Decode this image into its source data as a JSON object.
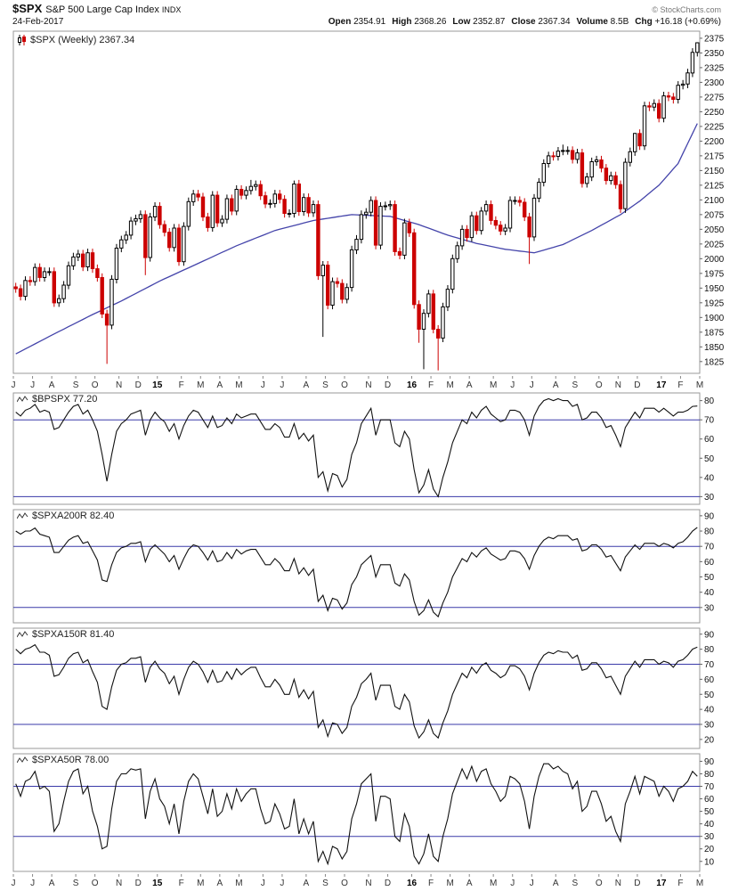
{
  "header": {
    "symbol": "$SPX",
    "name": "S&P 500 Large Cap Index",
    "exchange": "INDX",
    "copyright": "© StockCharts.com",
    "date": "24-Feb-2017",
    "quote": [
      {
        "label": "Open",
        "value": "2354.91"
      },
      {
        "label": "High",
        "value": "2368.26"
      },
      {
        "label": "Low",
        "value": "2352.87"
      },
      {
        "label": "Close",
        "value": "2367.34"
      },
      {
        "label": "Volume",
        "value": "8.5B"
      },
      {
        "label": "Chg",
        "value": "+16.18 (+0.69%)"
      }
    ]
  },
  "xaxis": {
    "labels": [
      "J",
      "J",
      "A",
      "S",
      "O",
      "N",
      "D",
      "15",
      "F",
      "M",
      "A",
      "M",
      "J",
      "J",
      "A",
      "S",
      "O",
      "N",
      "D",
      "16",
      "F",
      "M",
      "A",
      "M",
      "J",
      "J",
      "A",
      "S",
      "O",
      "N",
      "D",
      "17",
      "F",
      "M"
    ],
    "pos": [
      0,
      4,
      8,
      13,
      17,
      22,
      26,
      30,
      35,
      39,
      43,
      47,
      52,
      56,
      61,
      65,
      69,
      74,
      78,
      83,
      87,
      91,
      95,
      100,
      104,
      108,
      113,
      117,
      122,
      126,
      130,
      135,
      139,
      143
    ],
    "year_idx": [
      7,
      19,
      31
    ]
  },
  "chart_data": [
    {
      "id": "spx",
      "type": "candlestick",
      "legend": "$SPX (Weekly) 2367.34",
      "title": "$SPX Weekly with 40-week moving average",
      "ylim": [
        1805,
        2387
      ],
      "yticks": [
        1825,
        1850,
        1875,
        1900,
        1925,
        1950,
        1975,
        2000,
        2025,
        2050,
        2075,
        2100,
        2125,
        2150,
        2175,
        2200,
        2225,
        2250,
        2275,
        2300,
        2325,
        2350,
        2375
      ],
      "first_open": 1952,
      "wick": 7,
      "up_color": "#000000",
      "down_color": "#cc0000",
      "ma_color": "#4444aa",
      "close": [
        1949,
        1936,
        1963,
        1961,
        1985,
        1968,
        1978,
        1978,
        1925,
        1932,
        1955,
        1988,
        2003,
        2008,
        1986,
        2010,
        1983,
        1968,
        1906,
        1887,
        1965,
        2018,
        2032,
        2040,
        2064,
        2068,
        2075,
        2002,
        2071,
        2089,
        2058,
        2045,
        2019,
        2052,
        1995,
        2055,
        2097,
        2110,
        2105,
        2071,
        2053,
        2108,
        2061,
        2067,
        2102,
        2081,
        2118,
        2108,
        2116,
        2123,
        2126,
        2107,
        2093,
        2094,
        2110,
        2101,
        2077,
        2077,
        2127,
        2080,
        2104,
        2078,
        2092,
        1971,
        1989,
        1921,
        1961,
        1958,
        1931,
        1951,
        2015,
        2033,
        2075,
        2079,
        2099,
        2023,
        2089,
        2090,
        2092,
        2012,
        2006,
        2061,
        2044,
        1922,
        1880,
        1907,
        1940,
        1880,
        1865,
        1918,
        1948,
        2000,
        2022,
        2050,
        2036,
        2073,
        2048,
        2081,
        2092,
        2065,
        2057,
        2047,
        2052,
        2099,
        2099,
        2096,
        2071,
        2037,
        2103,
        2130,
        2162,
        2175,
        2174,
        2183,
        2184,
        2184,
        2169,
        2180,
        2128,
        2139,
        2165,
        2168,
        2154,
        2133,
        2141,
        2126,
        2085,
        2164,
        2182,
        2213,
        2192,
        2260,
        2258,
        2264,
        2239,
        2277,
        2275,
        2271,
        2295,
        2297,
        2316,
        2351,
        2367.34
      ],
      "low_overrides": {
        "19": 1821,
        "27": 1972,
        "64": 1867,
        "84": 1857,
        "85": 1812,
        "88": 1810,
        "107": 1991
      },
      "high_overrides": {
        "49": 2134,
        "58": 2133,
        "114": 2194,
        "129": 2214,
        "142": 2368.26
      },
      "ma_anchors": [
        [
          0,
          1838
        ],
        [
          8,
          1872
        ],
        [
          16,
          1905
        ],
        [
          22,
          1928
        ],
        [
          30,
          1962
        ],
        [
          38,
          1992
        ],
        [
          46,
          2022
        ],
        [
          54,
          2048
        ],
        [
          62,
          2065
        ],
        [
          70,
          2075
        ],
        [
          78,
          2072
        ],
        [
          84,
          2058
        ],
        [
          90,
          2040
        ],
        [
          96,
          2026
        ],
        [
          102,
          2016
        ],
        [
          108,
          2010
        ],
        [
          114,
          2024
        ],
        [
          120,
          2048
        ],
        [
          126,
          2075
        ],
        [
          130,
          2098
        ],
        [
          134,
          2125
        ],
        [
          138,
          2162
        ],
        [
          142,
          2230
        ]
      ]
    },
    {
      "id": "bpspx",
      "type": "line",
      "legend": "$BPSPX 77.20",
      "ylim": [
        26,
        84
      ],
      "yticks": [
        30,
        40,
        50,
        60,
        70,
        80
      ],
      "ref_lines": [
        30,
        70
      ],
      "values": [
        74,
        72,
        75,
        76,
        78,
        74,
        75,
        74,
        65,
        66,
        70,
        74,
        77,
        78,
        73,
        75,
        70,
        64,
        52,
        38,
        52,
        64,
        68,
        70,
        73,
        74,
        75,
        62,
        70,
        74,
        71,
        69,
        64,
        68,
        60,
        67,
        72,
        75,
        74,
        70,
        66,
        72,
        66,
        67,
        71,
        68,
        73,
        71,
        72,
        73,
        73,
        69,
        65,
        65,
        68,
        66,
        61,
        61,
        68,
        60,
        63,
        59,
        62,
        40,
        43,
        33,
        42,
        41,
        35,
        39,
        52,
        58,
        68,
        72,
        76,
        62,
        70,
        70,
        70,
        58,
        56,
        64,
        60,
        44,
        32,
        36,
        44,
        34,
        30,
        40,
        48,
        58,
        64,
        70,
        68,
        74,
        71,
        75,
        77,
        73,
        71,
        69,
        70,
        75,
        75,
        74,
        70,
        62,
        72,
        77,
        80,
        81,
        80,
        81,
        80,
        80,
        77,
        78,
        70,
        71,
        74,
        74,
        71,
        66,
        67,
        62,
        56,
        66,
        70,
        74,
        71,
        76,
        76,
        76,
        74,
        76,
        74,
        72,
        74,
        74,
        75,
        77,
        77.2
      ]
    },
    {
      "id": "spxa200r",
      "type": "line",
      "legend": "$SPXA200R 82.40",
      "ylim": [
        20,
        94
      ],
      "yticks": [
        30,
        40,
        50,
        60,
        70,
        80,
        90
      ],
      "ref_lines": [
        30,
        70
      ],
      "values": [
        80,
        78,
        80,
        80,
        82,
        78,
        77,
        76,
        66,
        66,
        70,
        74,
        76,
        77,
        72,
        73,
        67,
        61,
        48,
        47,
        58,
        66,
        69,
        70,
        72,
        72,
        73,
        60,
        68,
        71,
        68,
        65,
        60,
        64,
        55,
        62,
        68,
        71,
        70,
        66,
        61,
        67,
        60,
        61,
        66,
        62,
        68,
        65,
        67,
        68,
        68,
        63,
        58,
        58,
        62,
        59,
        54,
        54,
        62,
        52,
        56,
        51,
        55,
        34,
        38,
        28,
        36,
        35,
        29,
        33,
        45,
        50,
        58,
        61,
        64,
        50,
        58,
        58,
        58,
        46,
        44,
        52,
        48,
        34,
        25,
        28,
        35,
        27,
        24,
        33,
        40,
        50,
        56,
        62,
        60,
        66,
        63,
        67,
        69,
        65,
        63,
        61,
        62,
        67,
        67,
        66,
        62,
        55,
        64,
        70,
        74,
        76,
        75,
        77,
        77,
        77,
        74,
        75,
        67,
        68,
        71,
        71,
        68,
        63,
        64,
        59,
        54,
        63,
        67,
        71,
        68,
        72,
        72,
        72,
        70,
        72,
        71,
        69,
        72,
        73,
        76,
        80,
        82.4
      ]
    },
    {
      "id": "spxa150r",
      "type": "line",
      "legend": "$SPXA150R 81.40",
      "ylim": [
        14,
        94
      ],
      "yticks": [
        20,
        30,
        40,
        50,
        60,
        70,
        80,
        90
      ],
      "ref_lines": [
        30,
        70
      ],
      "values": [
        80,
        77,
        80,
        81,
        83,
        78,
        78,
        76,
        62,
        63,
        68,
        74,
        77,
        78,
        71,
        73,
        65,
        58,
        42,
        40,
        55,
        66,
        70,
        71,
        74,
        74,
        75,
        58,
        68,
        72,
        67,
        64,
        57,
        62,
        50,
        60,
        68,
        72,
        70,
        65,
        58,
        66,
        58,
        59,
        65,
        60,
        67,
        63,
        66,
        68,
        68,
        61,
        55,
        55,
        60,
        56,
        50,
        50,
        60,
        48,
        53,
        47,
        52,
        28,
        33,
        22,
        31,
        30,
        24,
        28,
        42,
        48,
        57,
        60,
        64,
        46,
        56,
        56,
        56,
        42,
        40,
        50,
        45,
        29,
        21,
        25,
        33,
        24,
        21,
        31,
        39,
        50,
        57,
        64,
        61,
        68,
        64,
        69,
        71,
        66,
        64,
        61,
        63,
        69,
        69,
        67,
        62,
        53,
        64,
        71,
        76,
        78,
        77,
        79,
        78,
        78,
        74,
        76,
        66,
        67,
        71,
        71,
        67,
        61,
        62,
        56,
        50,
        62,
        67,
        72,
        68,
        73,
        73,
        73,
        70,
        72,
        71,
        68,
        72,
        73,
        76,
        80,
        81.4
      ]
    },
    {
      "id": "spxa50r",
      "type": "line",
      "legend": "$SPXA50R 78.00",
      "ylim": [
        2,
        96
      ],
      "yticks": [
        10,
        20,
        30,
        40,
        50,
        60,
        70,
        80,
        90
      ],
      "ref_lines": [
        30,
        70
      ],
      "values": [
        72,
        62,
        74,
        76,
        82,
        68,
        70,
        66,
        34,
        40,
        58,
        74,
        82,
        84,
        64,
        70,
        50,
        38,
        20,
        22,
        52,
        74,
        80,
        80,
        84,
        83,
        84,
        44,
        66,
        76,
        60,
        54,
        40,
        56,
        32,
        58,
        74,
        80,
        76,
        62,
        48,
        68,
        46,
        50,
        64,
        52,
        68,
        58,
        64,
        68,
        68,
        52,
        40,
        42,
        56,
        48,
        36,
        38,
        60,
        32,
        44,
        32,
        42,
        10,
        18,
        8,
        22,
        20,
        12,
        18,
        44,
        56,
        72,
        76,
        80,
        42,
        62,
        62,
        60,
        30,
        26,
        48,
        38,
        14,
        8,
        16,
        32,
        14,
        10,
        30,
        44,
        64,
        74,
        84,
        76,
        86,
        74,
        82,
        84,
        72,
        66,
        58,
        62,
        78,
        76,
        72,
        58,
        36,
        62,
        78,
        88,
        88,
        84,
        86,
        82,
        80,
        68,
        74,
        50,
        54,
        66,
        66,
        56,
        42,
        46,
        34,
        26,
        56,
        66,
        78,
        64,
        78,
        76,
        74,
        62,
        70,
        66,
        58,
        68,
        70,
        74,
        82,
        78
      ]
    }
  ],
  "style": {
    "border_color": "#999999",
    "ref_line_color": "#3a3aa8",
    "indicator_line_color": "#111111",
    "tick_color": "#666666"
  }
}
